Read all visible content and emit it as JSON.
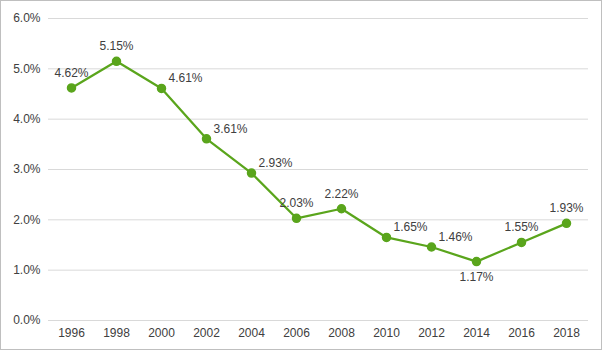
{
  "chart_data": {
    "type": "line",
    "categories": [
      "1996",
      "1998",
      "2000",
      "2002",
      "2004",
      "2006",
      "2008",
      "2010",
      "2012",
      "2014",
      "2016",
      "2018"
    ],
    "values": [
      4.62,
      5.15,
      4.61,
      3.61,
      2.93,
      2.03,
      2.22,
      1.65,
      1.46,
      1.17,
      1.55,
      1.93
    ],
    "value_labels": [
      "4.62%",
      "5.15%",
      "4.61%",
      "3.61%",
      "2.93%",
      "2.03%",
      "2.22%",
      "1.65%",
      "1.46%",
      "1.17%",
      "1.55%",
      "1.93%"
    ],
    "color": "#5aa51c",
    "marker": "circle",
    "ylim": [
      0,
      6
    ],
    "yticks": [
      {
        "value": 0,
        "label": "0.0%"
      },
      {
        "value": 1,
        "label": "1.0%"
      },
      {
        "value": 2,
        "label": "2.0%"
      },
      {
        "value": 3,
        "label": "3.0%"
      },
      {
        "value": 4,
        "label": "4.0%"
      },
      {
        "value": 5,
        "label": "5.0%"
      },
      {
        "value": 6,
        "label": "6.0%"
      }
    ],
    "grid": true,
    "data_labels": true
  }
}
